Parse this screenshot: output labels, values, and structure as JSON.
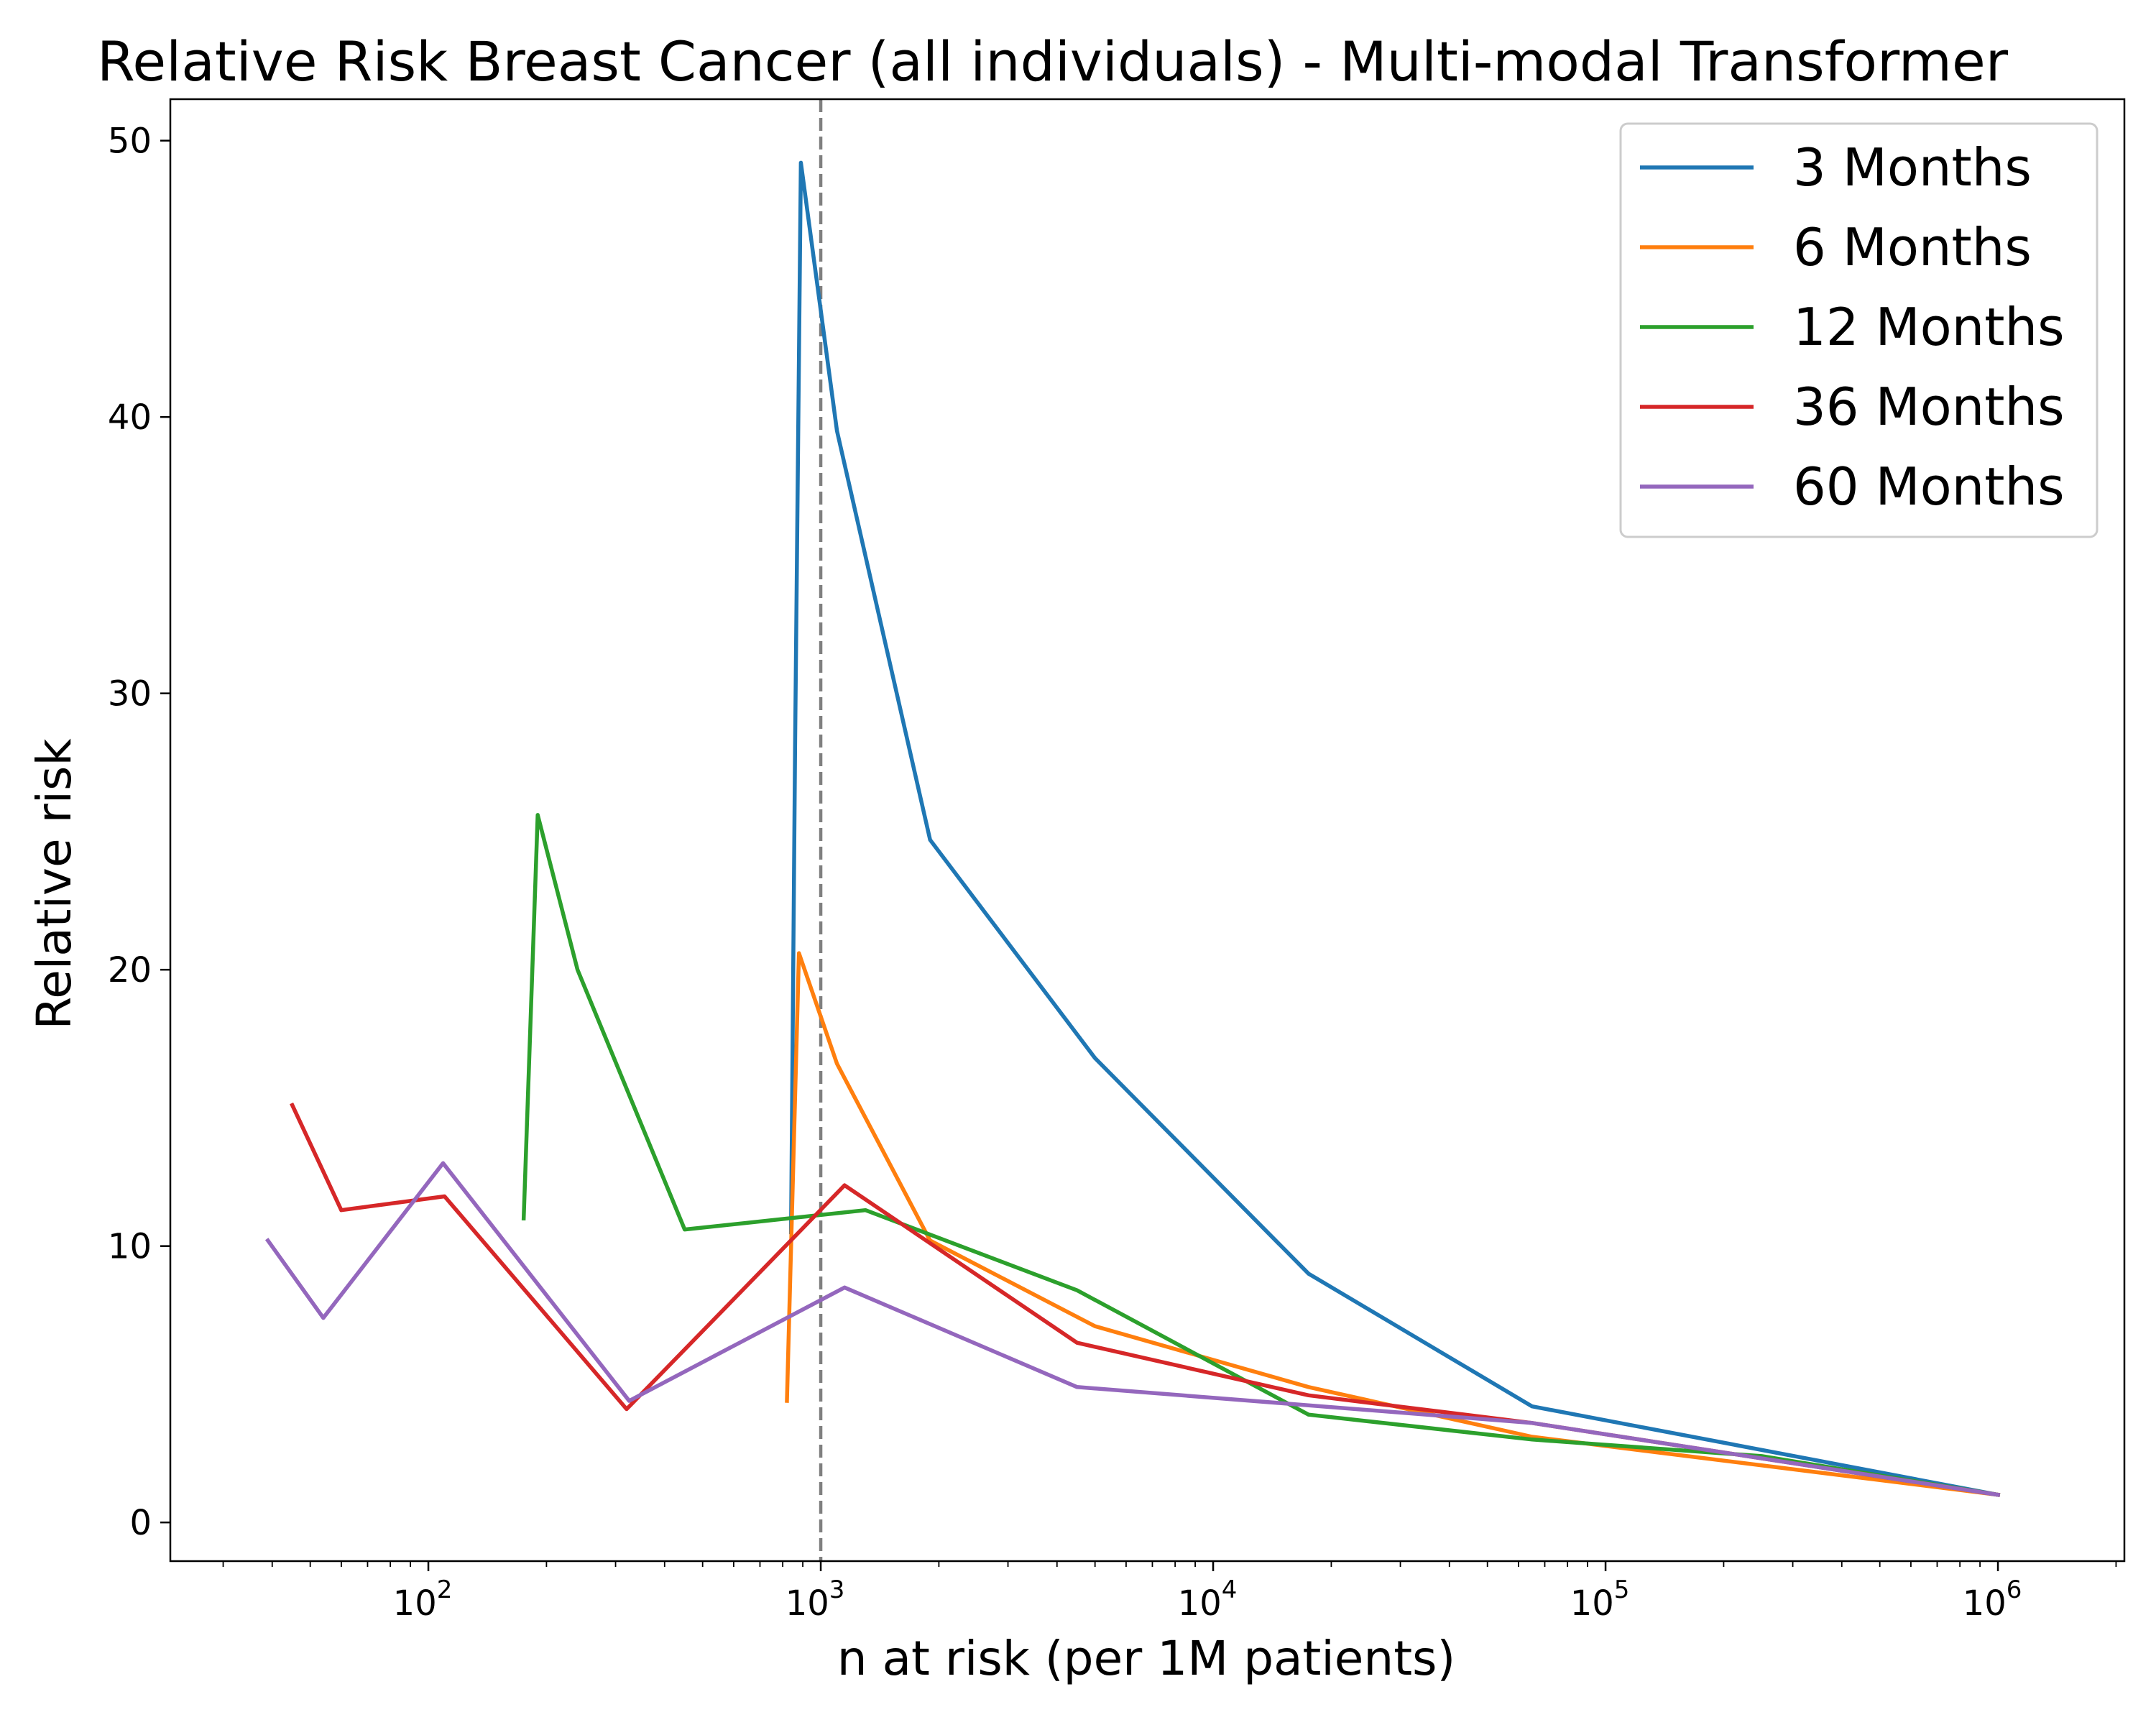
{
  "chart_data": {
    "type": "line",
    "title": "Relative Risk Breast Cancer (all individuals) - Multi-modal Transformer",
    "xlabel": "n at risk (per 1M patients)",
    "ylabel": "Relative risk",
    "xscale": "log",
    "xlim": [
      22,
      2100000
    ],
    "ylim": [
      -1.4,
      51.5
    ],
    "x_ticks": [
      {
        "base": "10",
        "exp": "2"
      },
      {
        "base": "10",
        "exp": "3"
      },
      {
        "base": "10",
        "exp": "4"
      },
      {
        "base": "10",
        "exp": "5"
      },
      {
        "base": "10",
        "exp": "6"
      }
    ],
    "y_ticks": [
      "0",
      "10",
      "20",
      "30",
      "40",
      "50"
    ],
    "grid": false,
    "legend_position": "top-right",
    "reference_line": {
      "x": 1000,
      "style": "dashed",
      "color": "#7f7f7f"
    },
    "series": [
      {
        "name": "3 Months",
        "color": "#1f77b4",
        "x": [
          840,
          860,
          890,
          1100,
          1900,
          5000,
          17500,
          65000,
          1000000
        ],
        "y": [
          10.5,
          28,
          49.2,
          39.5,
          24.7,
          16.8,
          9.0,
          4.2,
          1.0
        ]
      },
      {
        "name": "6 Months",
        "color": "#ff7f0e",
        "x": [
          820,
          880,
          1100,
          1900,
          5000,
          17500,
          65000,
          1000000
        ],
        "y": [
          4.4,
          20.6,
          16.6,
          10.2,
          7.1,
          4.9,
          3.1,
          1.0
        ]
      },
      {
        "name": "12 Months",
        "color": "#2ca02c",
        "x": [
          175,
          190,
          240,
          450,
          1300,
          4500,
          17500,
          65000,
          250000,
          1000000
        ],
        "y": [
          11.0,
          25.6,
          20.0,
          10.6,
          11.3,
          8.4,
          3.9,
          3.0,
          2.4,
          1.0
        ]
      },
      {
        "name": "36 Months",
        "color": "#d62728",
        "x": [
          45,
          60,
          110,
          320,
          1150,
          4500,
          17500,
          65000,
          1000000
        ],
        "y": [
          15.1,
          11.3,
          11.8,
          4.1,
          12.2,
          6.5,
          4.6,
          3.6,
          1.0
        ]
      },
      {
        "name": "60 Months",
        "color": "#9467bd",
        "x": [
          39,
          54,
          109,
          325,
          1150,
          4500,
          65000,
          1000000
        ],
        "y": [
          10.2,
          7.4,
          13.0,
          4.4,
          8.5,
          4.9,
          3.6,
          1.0
        ]
      }
    ]
  }
}
